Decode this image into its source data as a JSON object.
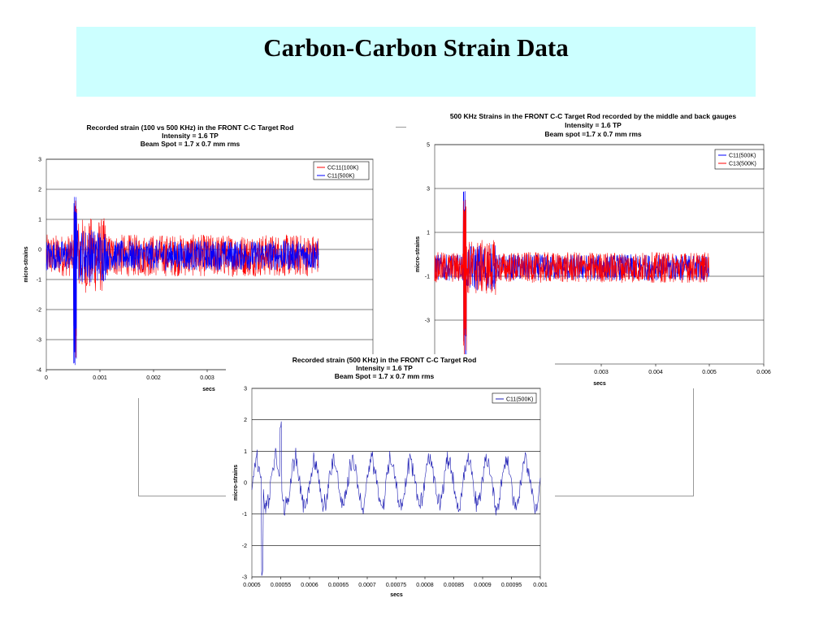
{
  "slide": {
    "title": "Carbon-Carbon Strain Data",
    "title_bg": "#ccffff"
  },
  "chart_data": [
    {
      "id": "chart-left",
      "type": "line",
      "title": [
        "Recorded strain (100 vs 500 KHz) in the FRONT C-C Target Rod",
        "Intensity = 1.6 TP",
        "Beam Spot = 1.7 x 0.7 mm rms"
      ],
      "xlabel": "secs",
      "ylabel": "micro-strains",
      "xlim": [
        0,
        0.006
      ],
      "ylim": [
        -4,
        3
      ],
      "xticks": [
        "0",
        "0.001",
        "0.002",
        "0.003"
      ],
      "yticks": [
        "3",
        "2",
        "1",
        "0",
        "-1",
        "-2",
        "-3",
        "-4"
      ],
      "grid": "horizontal",
      "legend": "top-right",
      "series": [
        {
          "name": "CC11(100K)",
          "color": "#ff0000",
          "x_end": 0.005,
          "spike_x": 0.0005,
          "spike_max": 2.0,
          "spike_min": -3.7,
          "noise": 0.7
        },
        {
          "name": "C11(500K)",
          "color": "#0000ff",
          "x_end": 0.005,
          "spike_x": 0.0005,
          "spike_max": 2.0,
          "spike_min": -3.7,
          "noise": 0.5
        }
      ]
    },
    {
      "id": "chart-right",
      "type": "line",
      "title": [
        "500 KHz Strains in the FRONT C-C Target Rod recorded by the middle and back gauges",
        "Intensity = 1.6 TP",
        "Beam spot =1.7 x 0.7 mm rms"
      ],
      "xlabel": "secs",
      "ylabel": "micro-strains",
      "xlim": [
        0,
        0.006
      ],
      "ylim": [
        -5,
        5
      ],
      "xticks": [
        "0.003",
        "0.004",
        "0.005",
        "0.006"
      ],
      "yticks": [
        "5",
        "3",
        "1",
        "-1",
        "-3"
      ],
      "grid": "horizontal",
      "legend": "top-right",
      "series": [
        {
          "name": "C11(500K)",
          "color": "#0000ff",
          "x_end": 0.005,
          "spike_x": 0.00052,
          "spike_max": 3.5,
          "spike_min": -4.5,
          "noise": 0.6
        },
        {
          "name": "C13(500K)",
          "color": "#ff0000",
          "x_end": 0.005,
          "spike_x": 0.00052,
          "spike_max": 3.5,
          "spike_min": -4.5,
          "noise": 0.7
        }
      ]
    },
    {
      "id": "chart-bottom",
      "type": "line",
      "title": [
        "Recorded strain (500 KHz) in the FRONT C-C Target Rod",
        "Intensity = 1.6 TP",
        "Beam Spot = 1.7 x 0.7 mm rms"
      ],
      "xlabel": "secs",
      "ylabel": "micro-strains",
      "xlim": [
        0.0005,
        0.001
      ],
      "ylim": [
        -3,
        3
      ],
      "xticks": [
        "0.0005",
        "0.00055",
        "0.0006",
        "0.00065",
        "0.0007",
        "0.00075",
        "0.0008",
        "0.00085",
        "0.0009",
        "0.00095",
        "0.001"
      ],
      "yticks": [
        "3",
        "2",
        "1",
        "0",
        "-1",
        "-2",
        "-3"
      ],
      "grid": "horizontal",
      "legend": "top-right",
      "series": [
        {
          "name": "C11(500K)",
          "color": "#1f1fb4",
          "oscillation_period": 3.33e-05,
          "amplitude": 0.9,
          "min": -3.0,
          "max": 2.0
        }
      ]
    }
  ]
}
